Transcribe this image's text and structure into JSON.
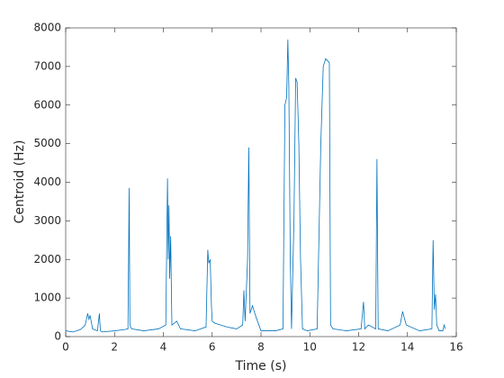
{
  "chart_data": {
    "type": "line",
    "xlabel": "Time (s)",
    "ylabel": "Centroid (Hz)",
    "color": "#0072bd",
    "x": [
      0,
      0.3,
      0.6,
      0.8,
      0.9,
      0.95,
      1.0,
      1.1,
      1.3,
      1.38,
      1.42,
      1.5,
      2.0,
      2.4,
      2.55,
      2.6,
      2.63,
      2.7,
      3.2,
      3.8,
      4.1,
      4.17,
      4.2,
      4.23,
      4.26,
      4.3,
      4.35,
      4.55,
      4.7,
      5.3,
      5.75,
      5.82,
      5.86,
      5.92,
      5.97,
      6.0,
      6.1,
      6.6,
      7.0,
      7.25,
      7.3,
      7.35,
      7.45,
      7.5,
      7.55,
      7.65,
      7.8,
      8.0,
      8.6,
      8.9,
      8.98,
      9.05,
      9.1,
      9.14,
      9.2,
      9.25,
      9.35,
      9.42,
      9.48,
      9.55,
      9.62,
      9.7,
      9.9,
      10.3,
      10.45,
      10.55,
      10.65,
      10.8,
      10.85,
      10.95,
      11.5,
      12.1,
      12.2,
      12.25,
      12.4,
      12.7,
      12.75,
      12.8,
      13.2,
      13.7,
      13.8,
      13.95,
      14.5,
      15.0,
      15.05,
      15.1,
      15.15,
      15.2,
      15.3,
      15.45,
      15.5,
      15.55
    ],
    "values": [
      150,
      120,
      180,
      300,
      600,
      450,
      550,
      200,
      150,
      600,
      150,
      120,
      150,
      180,
      200,
      3850,
      300,
      200,
      150,
      200,
      300,
      4100,
      2000,
      3400,
      1500,
      2600,
      300,
      400,
      200,
      150,
      250,
      2250,
      1900,
      2000,
      800,
      400,
      350,
      250,
      200,
      300,
      1200,
      400,
      2000,
      4900,
      600,
      800,
      500,
      150,
      150,
      200,
      6000,
      6200,
      7700,
      6500,
      2000,
      200,
      3000,
      6700,
      6600,
      5000,
      2000,
      200,
      150,
      200,
      5000,
      7000,
      7200,
      7100,
      300,
      200,
      150,
      200,
      900,
      200,
      300,
      200,
      4600,
      200,
      150,
      300,
      650,
      300,
      150,
      200,
      2500,
      700,
      1100,
      300,
      150,
      150,
      300,
      200
    ],
    "xlim": [
      0,
      16
    ],
    "xticks": [
      0,
      2,
      4,
      6,
      8,
      10,
      12,
      14,
      16
    ],
    "ylim": [
      0,
      8000
    ],
    "yticks": [
      0,
      1000,
      2000,
      3000,
      4000,
      5000,
      6000,
      7000,
      8000
    ]
  }
}
